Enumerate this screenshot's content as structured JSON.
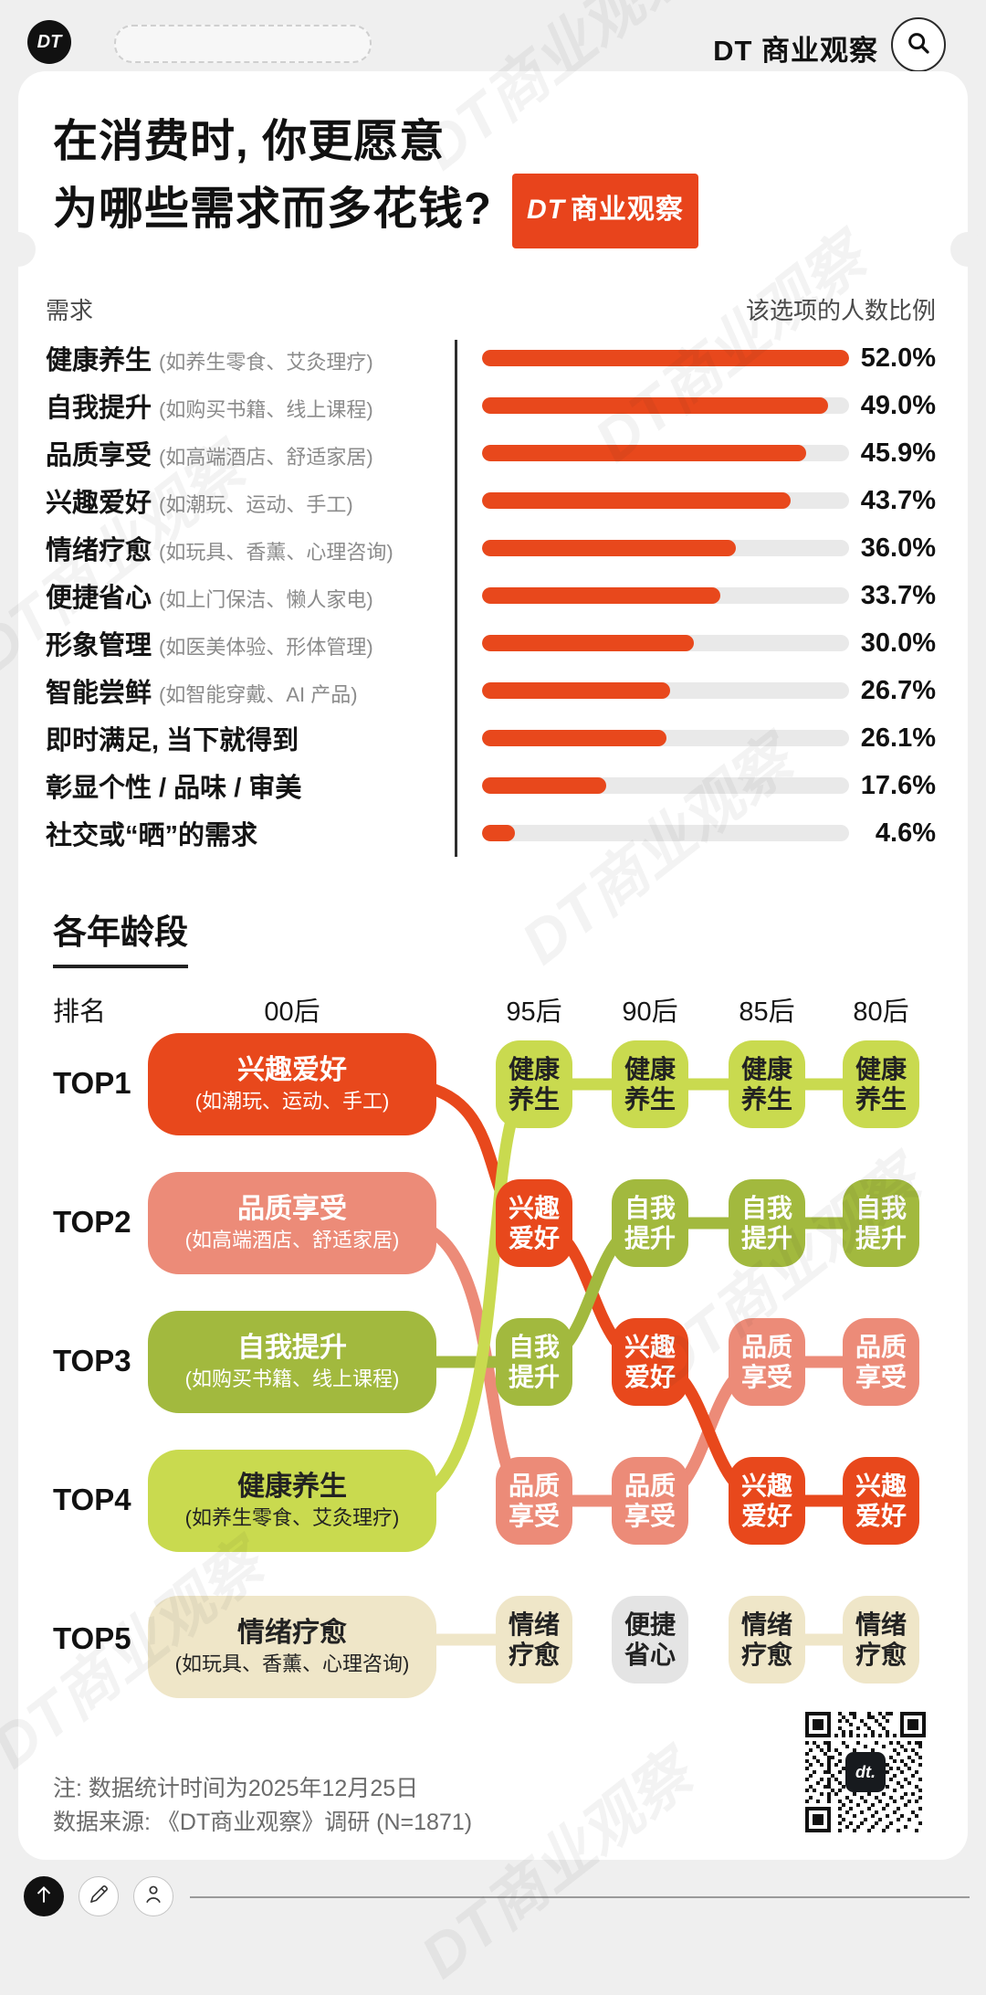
{
  "watermark": "DT商业观察",
  "colors": {
    "red": {
      "bg": "#e8441c",
      "fg": "#ffffff"
    },
    "orange": {
      "bg": "#e8481c",
      "fg": "#ffffff"
    },
    "salmon": {
      "bg": "#ec8b78",
      "fg": "#ffffff"
    },
    "olive": {
      "bg": "#a2b93e",
      "fg": "#ffffff"
    },
    "lightgreen": {
      "bg": "#c9da4f",
      "fg": "#222222"
    },
    "beige": {
      "bg": "#efe6c8",
      "fg": "#222222"
    },
    "gray": {
      "bg": "#e4e4e4",
      "fg": "#222222"
    }
  },
  "top_bar": {
    "logo": "DT",
    "brand": "DT 商业观察"
  },
  "title": {
    "line1": "在消费时, 你更愿意",
    "line2": "为哪些需求而多花钱?",
    "badge_dt": "DT",
    "badge_rest": "商业观察"
  },
  "bar_section": {
    "col_left": "需求",
    "col_right": "该选项的人数比例",
    "rows": [
      {
        "label": "健康养生",
        "sub": "(如养生零食、艾灸理疗)",
        "pct": "52.0%",
        "value": 52.0
      },
      {
        "label": "自我提升",
        "sub": "(如购买书籍、线上课程)",
        "pct": "49.0%",
        "value": 49.0
      },
      {
        "label": "品质享受",
        "sub": "(如高端酒店、舒适家居)",
        "pct": "45.9%",
        "value": 45.9
      },
      {
        "label": "兴趣爱好",
        "sub": "(如潮玩、运动、手工)",
        "pct": "43.7%",
        "value": 43.7
      },
      {
        "label": "情绪疗愈",
        "sub": "(如玩具、香薰、心理咨询)",
        "pct": "36.0%",
        "value": 36.0
      },
      {
        "label": "便捷省心",
        "sub": "(如上门保洁、懒人家电)",
        "pct": "33.7%",
        "value": 33.7
      },
      {
        "label": "形象管理",
        "sub": "(如医美体验、形体管理)",
        "pct": "30.0%",
        "value": 30.0
      },
      {
        "label": "智能尝鲜",
        "sub": "(如智能穿戴、AI 产品)",
        "pct": "26.7%",
        "value": 26.7
      },
      {
        "label": "即时满足, 当下就得到",
        "sub": "",
        "pct": "26.1%",
        "value": 26.1
      },
      {
        "label": "彰显个性 / 品味 / 审美",
        "sub": "",
        "pct": "17.6%",
        "value": 17.6
      },
      {
        "label": "社交或“晒”的需求",
        "sub": "",
        "pct": "4.6%",
        "value": 4.6
      }
    ]
  },
  "age_section": {
    "heading": "各年龄段",
    "rank_label": "排名",
    "columns": [
      "00后",
      "95后",
      "90后",
      "85后",
      "80后"
    ],
    "rank_rows": [
      "TOP1",
      "TOP2",
      "TOP3",
      "TOP4",
      "TOP5"
    ],
    "pills": [
      {
        "title": "兴趣爱好",
        "sub": "(如潮玩、运动、手工)",
        "color": "orange"
      },
      {
        "title": "品质享受",
        "sub": "(如高端酒店、舒适家居)",
        "color": "salmon"
      },
      {
        "title": "自我提升",
        "sub": "(如购买书籍、线上课程)",
        "color": "olive"
      },
      {
        "title": "健康养生",
        "sub": "(如养生零食、艾灸理疗)",
        "color": "lightgreen"
      },
      {
        "title": "情绪疗愈",
        "sub": "(如玩具、香薰、心理咨询)",
        "color": "beige"
      }
    ],
    "badges": [
      {
        "col": "95后",
        "row": "TOP1",
        "text": "健康养生",
        "color": "lightgreen"
      },
      {
        "col": "95后",
        "row": "TOP2",
        "text": "兴趣爱好",
        "color": "orange"
      },
      {
        "col": "95后",
        "row": "TOP3",
        "text": "自我提升",
        "color": "olive"
      },
      {
        "col": "95后",
        "row": "TOP4",
        "text": "品质享受",
        "color": "salmon"
      },
      {
        "col": "95后",
        "row": "TOP5",
        "text": "情绪疗愈",
        "color": "beige"
      },
      {
        "col": "90后",
        "row": "TOP1",
        "text": "健康养生",
        "color": "lightgreen"
      },
      {
        "col": "90后",
        "row": "TOP2",
        "text": "自我提升",
        "color": "olive"
      },
      {
        "col": "90后",
        "row": "TOP3",
        "text": "兴趣爱好",
        "color": "orange"
      },
      {
        "col": "90后",
        "row": "TOP4",
        "text": "品质享受",
        "color": "salmon"
      },
      {
        "col": "90后",
        "row": "TOP5",
        "text": "便捷省心",
        "color": "gray"
      },
      {
        "col": "85后",
        "row": "TOP1",
        "text": "健康养生",
        "color": "lightgreen"
      },
      {
        "col": "85后",
        "row": "TOP2",
        "text": "自我提升",
        "color": "olive"
      },
      {
        "col": "85后",
        "row": "TOP3",
        "text": "品质享受",
        "color": "salmon"
      },
      {
        "col": "85后",
        "row": "TOP4",
        "text": "兴趣爱好",
        "color": "orange"
      },
      {
        "col": "85后",
        "row": "TOP5",
        "text": "情绪疗愈",
        "color": "beige"
      },
      {
        "col": "80后",
        "row": "TOP1",
        "text": "健康养生",
        "color": "lightgreen"
      },
      {
        "col": "80后",
        "row": "TOP2",
        "text": "自我提升",
        "color": "olive"
      },
      {
        "col": "80后",
        "row": "TOP3",
        "text": "品质享受",
        "color": "salmon"
      },
      {
        "col": "80后",
        "row": "TOP4",
        "text": "兴趣爱好",
        "color": "orange"
      },
      {
        "col": "80后",
        "row": "TOP5",
        "text": "情绪疗愈",
        "color": "beige"
      }
    ],
    "lines": [
      {
        "need": "品质享受",
        "color": "salmon"
      },
      {
        "need": "兴趣爱好",
        "color": "orange"
      },
      {
        "need": "自我提升",
        "color": "olive"
      },
      {
        "need": "健康养生",
        "color": "lightgreen"
      },
      {
        "need": "情绪疗愈",
        "color": "beige"
      }
    ]
  },
  "footer": {
    "note1": "注: 数据统计时间为2025年12月25日",
    "note2": "数据来源: 《DT商业观察》调研 (N=1871)",
    "qr_label": "dt."
  },
  "chart_data": [
    {
      "type": "bar",
      "orientation": "horizontal",
      "title": "在消费时, 你更愿意为哪些需求而多花钱?",
      "xlabel_left": "需求",
      "xlabel_right": "该选项的人数比例",
      "categories": [
        "健康养生",
        "自我提升",
        "品质享受",
        "兴趣爱好",
        "情绪疗愈",
        "便捷省心",
        "形象管理",
        "智能尝鲜",
        "即时满足, 当下就得到",
        "彰显个性 / 品味 / 审美",
        "社交或“晒”的需求"
      ],
      "category_notes": [
        "如养生零食、艾灸理疗",
        "如购买书籍、线上课程",
        "如高端酒店、舒适家居",
        "如潮玩、运动、手工",
        "如玩具、香薰、心理咨询",
        "如上门保洁、懒人家电",
        "如医美体验、形体管理",
        "如智能穿戴、AI 产品",
        "",
        "",
        ""
      ],
      "values": [
        52.0,
        49.0,
        45.9,
        43.7,
        36.0,
        33.7,
        30.0,
        26.7,
        26.1,
        17.6,
        4.6
      ],
      "value_suffix": "%",
      "xlim": [
        0,
        52
      ],
      "bar_color": "#e8481c",
      "track_color": "#e9e9e9",
      "grid": false
    },
    {
      "type": "table",
      "title": "各年龄段",
      "row_header": [
        "TOP1",
        "TOP2",
        "TOP3",
        "TOP4",
        "TOP5"
      ],
      "columns": [
        "00后",
        "95后",
        "90后",
        "85后",
        "80后"
      ],
      "cells": [
        [
          "兴趣爱好",
          "健康养生",
          "健康养生",
          "健康养生",
          "健康养生"
        ],
        [
          "品质享受",
          "兴趣爱好",
          "自我提升",
          "自我提升",
          "自我提升"
        ],
        [
          "自我提升",
          "自我提升",
          "兴趣爱好",
          "品质享受",
          "品质享受"
        ],
        [
          "健康养生",
          "品质享受",
          "品质享受",
          "兴趣爱好",
          "兴趣爱好"
        ],
        [
          "情绪疗愈",
          "情绪疗愈",
          "便捷省心",
          "情绪疗愈",
          "情绪疗愈"
        ]
      ]
    }
  ]
}
